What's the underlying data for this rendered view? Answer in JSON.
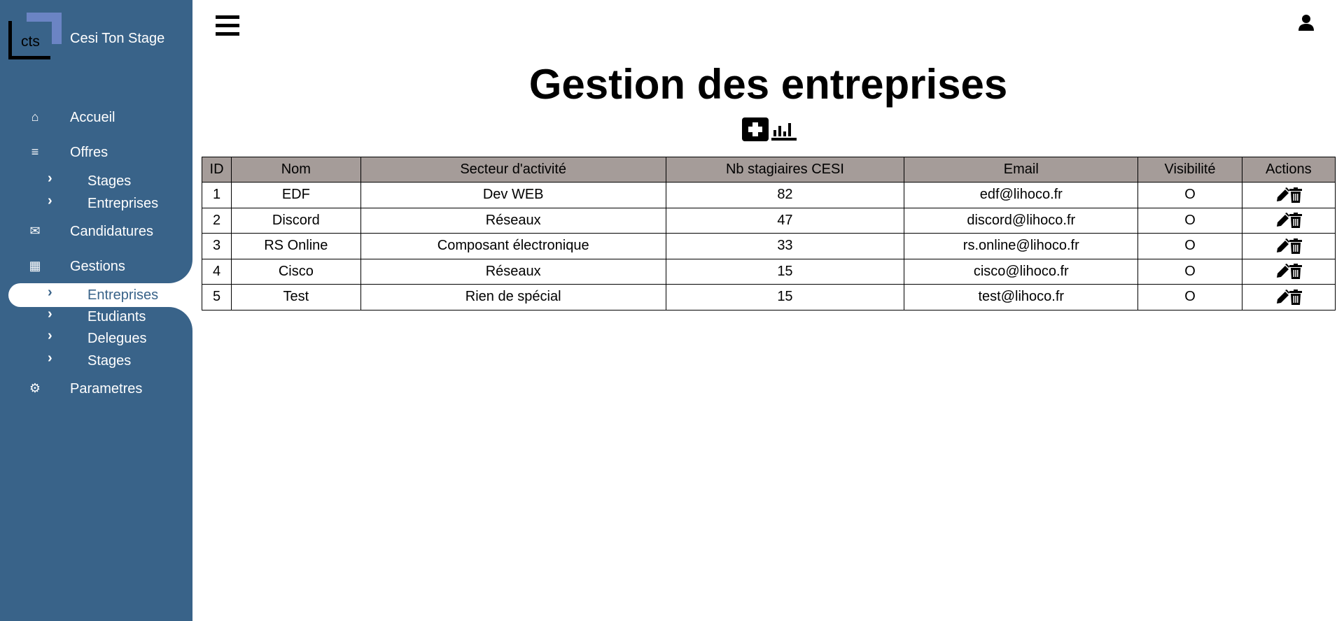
{
  "brand": {
    "logo_text": "cts",
    "name": "Cesi Ton Stage"
  },
  "colors": {
    "sidebar": "#396389",
    "logo_accent": "#6b84c4",
    "table_header": "#a59c99"
  },
  "sidebar": {
    "accueil": "Accueil",
    "offres": "Offres",
    "offres_sub": [
      "Stages",
      "Entreprises"
    ],
    "candidatures": "Candidatures",
    "gestions": "Gestions",
    "gestions_sub": [
      "Entreprises",
      "Etudiants",
      "Delegues",
      "Stages"
    ],
    "active": "Entreprises",
    "parametres": "Parametres"
  },
  "header": {
    "menu_icon": "hamburger-icon",
    "user_icon": "user-icon"
  },
  "page": {
    "title": "Gestion des entreprises"
  },
  "table": {
    "columns": [
      "ID",
      "Nom",
      "Secteur d'activité",
      "Nb stagiaires CESI",
      "Email",
      "Visibilité",
      "Actions"
    ],
    "rows": [
      [
        "1",
        "EDF",
        "Dev WEB",
        "82",
        "edf@lihoco.fr",
        "O"
      ],
      [
        "2",
        "Discord",
        "Réseaux",
        "47",
        "discord@lihoco.fr",
        "O"
      ],
      [
        "3",
        "RS Online",
        "Composant électronique",
        "33",
        "rs.online@lihoco.fr",
        "O"
      ],
      [
        "4",
        "Cisco",
        "Réseaux",
        "15",
        "cisco@lihoco.fr",
        "O"
      ],
      [
        "5",
        "Test",
        "Rien de spécial",
        "15",
        "test@lihoco.fr",
        "O"
      ]
    ]
  }
}
